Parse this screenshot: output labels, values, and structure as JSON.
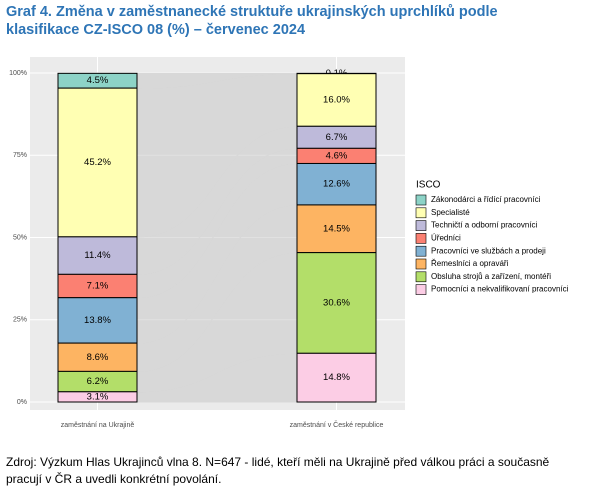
{
  "title_lines": [
    "Graf 4. Změna v zaměstnanecké struktuře ukrajinských uprchlíků podle",
    "klasifikace CZ-ISCO 08 (%) – červenec 2024"
  ],
  "chart_data": {
    "type": "alluvial",
    "categories": [
      "zaměstnání na Ukrajině",
      "zaměstnání v České republice"
    ],
    "legend_title": "ISCO",
    "legend": "right",
    "grid": true,
    "ylim": [
      0,
      100
    ],
    "yticks": [
      {
        "value": 0,
        "label": "0%"
      },
      {
        "value": 25,
        "label": "25%"
      },
      {
        "value": 50,
        "label": "50%"
      },
      {
        "value": 75,
        "label": "75%"
      },
      {
        "value": 100,
        "label": "100%"
      }
    ],
    "series": [
      {
        "name": "Zákonodárci a řídící pracovníci",
        "color": "#8dd3c7",
        "values": [
          4.5,
          0.1
        ],
        "value_labels": [
          "4.5%",
          "0.1%"
        ]
      },
      {
        "name": "Specialisté",
        "color": "#ffffb3",
        "values": [
          45.2,
          16.0
        ],
        "value_labels": [
          "45.2%",
          "16.0%"
        ]
      },
      {
        "name": "Techničtí a odborní pracovníci",
        "color": "#bebada",
        "values": [
          11.4,
          6.7
        ],
        "value_labels": [
          "11.4%",
          "6.7%"
        ]
      },
      {
        "name": "Úředníci",
        "color": "#fb8072",
        "values": [
          7.1,
          4.6
        ],
        "value_labels": [
          "7.1%",
          "4.6%"
        ]
      },
      {
        "name": "Pracovníci ve službách a prodeji",
        "color": "#80b1d3",
        "values": [
          13.8,
          12.6
        ],
        "value_labels": [
          "13.8%",
          "12.6%"
        ]
      },
      {
        "name": "Řemeslníci a opraváři",
        "color": "#fdb462",
        "values": [
          8.6,
          14.5
        ],
        "value_labels": [
          "8.6%",
          "14.5%"
        ]
      },
      {
        "name": "Obsluha strojů a zařízení, montéři",
        "color": "#b3de69",
        "values": [
          6.2,
          30.6
        ],
        "value_labels": [
          "6.2%",
          "30.6%"
        ]
      },
      {
        "name": "Pomocníci a nekvalifikovaní pracovníci",
        "color": "#fccde5",
        "values": [
          3.1,
          14.8
        ],
        "value_labels": [
          "3.1%",
          "14.8%"
        ]
      }
    ]
  },
  "source_lines": [
    "Zdroj: Výzkum Hlas Ukrajinců vlna 8. N=647 - lidé, kteří měli na Ukrajině před válkou práci a současně",
    "pracují v ČR a uvedli konkrétní povolání."
  ]
}
